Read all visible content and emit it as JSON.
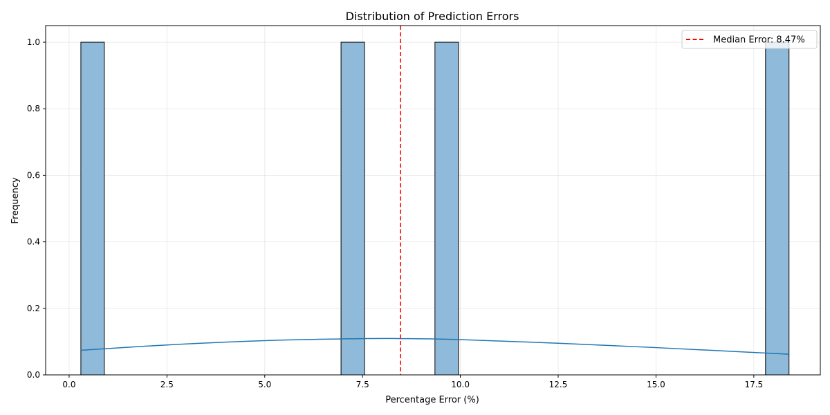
{
  "chart_data": {
    "type": "bar",
    "title": "Distribution of Prediction Errors",
    "xlabel": "Percentage Error (%)",
    "ylabel": "Frequency",
    "xlim": [
      -0.6,
      19.2
    ],
    "ylim": [
      0,
      1.05
    ],
    "xticks": [
      0.0,
      2.5,
      5.0,
      7.5,
      10.0,
      12.5,
      15.0,
      17.5
    ],
    "xtick_labels": [
      "0.0",
      "2.5",
      "5.0",
      "7.5",
      "10.0",
      "12.5",
      "15.0",
      "17.5"
    ],
    "yticks": [
      0.0,
      0.2,
      0.4,
      0.6,
      0.8,
      1.0
    ],
    "ytick_labels": [
      "0.0",
      "0.2",
      "0.4",
      "0.6",
      "0.8",
      "1.0"
    ],
    "grid": true,
    "bars": [
      {
        "x0": 0.3,
        "x1": 0.9,
        "count": 1
      },
      {
        "x0": 6.95,
        "x1": 7.55,
        "count": 1
      },
      {
        "x0": 9.35,
        "x1": 9.95,
        "count": 1
      },
      {
        "x0": 17.8,
        "x1": 18.4,
        "count": 1
      }
    ],
    "bar_color": "#8fbad9",
    "kde": {
      "color": "#1f77b4",
      "x": [
        0.3,
        2.5,
        5.0,
        7.5,
        8.5,
        10.0,
        12.5,
        15.0,
        18.4
      ],
      "y": [
        0.074,
        0.09,
        0.103,
        0.109,
        0.109,
        0.106,
        0.095,
        0.082,
        0.062
      ]
    },
    "median_line": {
      "x": 8.47,
      "color": "#ff0000",
      "label": "Median Error: 8.47%"
    },
    "legend_position": "top-right"
  }
}
